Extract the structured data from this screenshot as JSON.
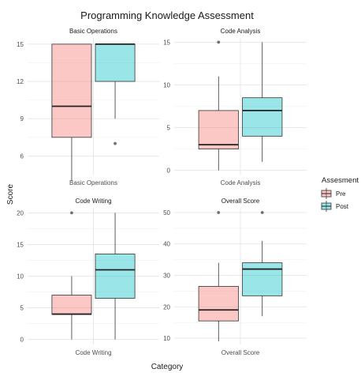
{
  "chart_data": {
    "type": "boxplot",
    "title": "Programming Knowledge Assessment",
    "xlabel": "Category",
    "ylabel": "Score",
    "legend": {
      "title": "Assesment",
      "placement": "right",
      "entries": [
        {
          "name": "Pre",
          "color": "#F8766D"
        },
        {
          "name": "Post",
          "color": "#00BFC4"
        }
      ]
    },
    "grid": true,
    "facets": [
      {
        "strip": "Basic Operations",
        "category": "Basic Operations",
        "ylim": [
          4.5,
          15.5
        ],
        "yticks": [
          6,
          9,
          12,
          15
        ],
        "boxes": [
          {
            "group": "Pre",
            "min": 4.0,
            "q1": 7.5,
            "median": 10.0,
            "q3": 15.0,
            "max": 15.0,
            "outliers": []
          },
          {
            "group": "Post",
            "min": 9.0,
            "q1": 12.0,
            "median": 15.0,
            "q3": 15.0,
            "max": 15.0,
            "outliers": [
              7.0
            ]
          }
        ]
      },
      {
        "strip": "Code Analysis",
        "category": "Code Analysis",
        "ylim": [
          -0.5,
          15.5
        ],
        "yticks": [
          0,
          5,
          10,
          15
        ],
        "boxes": [
          {
            "group": "Pre",
            "min": 0.0,
            "q1": 2.5,
            "median": 3.0,
            "q3": 7.0,
            "max": 11.0,
            "outliers": [
              15.0
            ]
          },
          {
            "group": "Post",
            "min": 1.0,
            "q1": 4.0,
            "median": 7.0,
            "q3": 8.5,
            "max": 15.0,
            "outliers": []
          }
        ]
      },
      {
        "strip": "Code Writing",
        "category": "Code Writing",
        "ylim": [
          -0.8,
          20.8
        ],
        "yticks": [
          0,
          5,
          10,
          15,
          20
        ],
        "boxes": [
          {
            "group": "Pre",
            "min": 0.0,
            "q1": 4.0,
            "median": 4.0,
            "q3": 7.0,
            "max": 10.0,
            "outliers": [
              20.0
            ]
          },
          {
            "group": "Post",
            "min": 0.0,
            "q1": 6.5,
            "median": 11.0,
            "q3": 13.5,
            "max": 20.0,
            "outliers": []
          }
        ]
      },
      {
        "strip": "Overall Score",
        "category": "Overall Score",
        "ylim": [
          8.0,
          51.5
        ],
        "yticks": [
          10,
          20,
          30,
          40,
          50
        ],
        "boxes": [
          {
            "group": "Pre",
            "min": 9.0,
            "q1": 15.5,
            "median": 19.0,
            "q3": 26.5,
            "max": 34.0,
            "outliers": [
              50.0
            ]
          },
          {
            "group": "Post",
            "min": 17.0,
            "q1": 23.5,
            "median": 32.0,
            "q3": 34.0,
            "max": 41.0,
            "outliers": [
              50.0
            ]
          }
        ]
      }
    ]
  }
}
